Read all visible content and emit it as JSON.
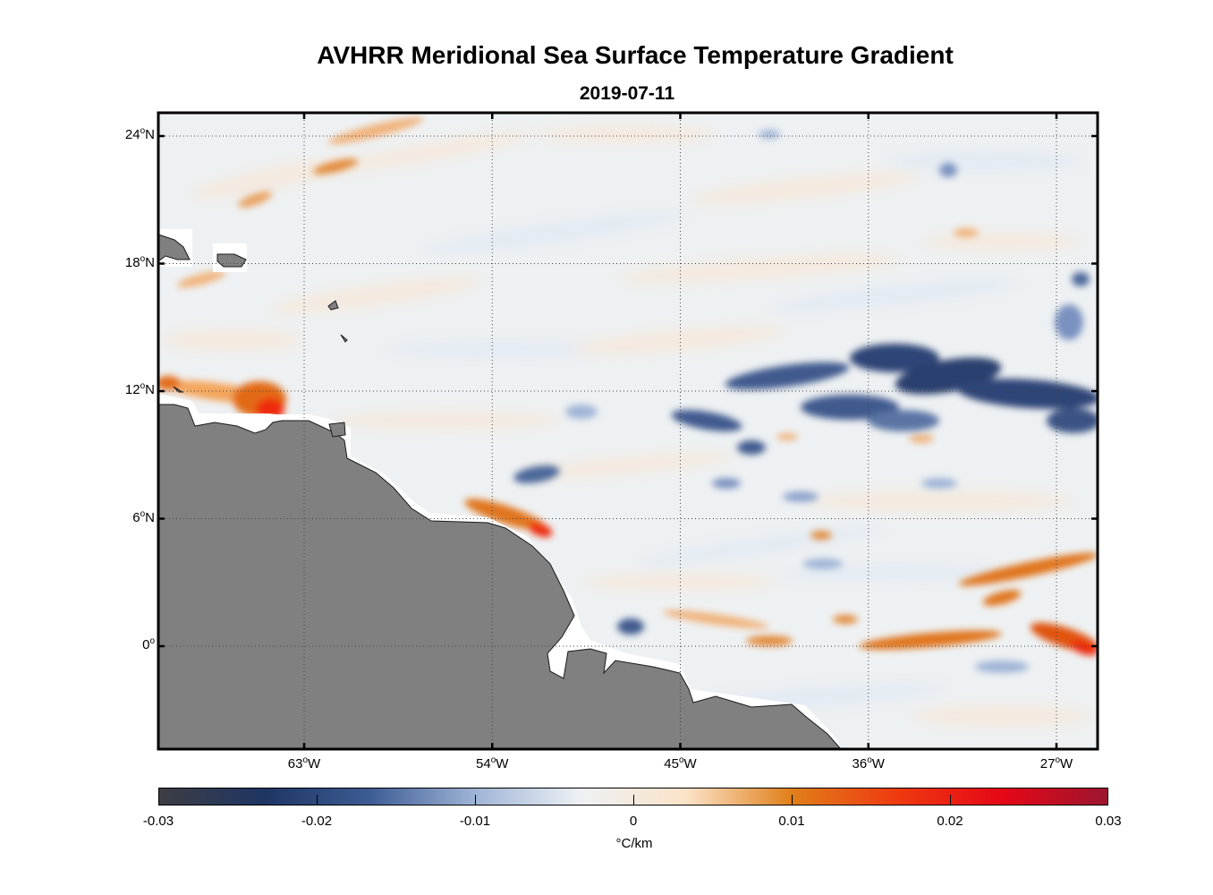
{
  "title": "AVHRR Meridional Sea Surface Temperature Gradient",
  "subtitle": "2019-07-11",
  "lat_labels": [
    {
      "deg": "24",
      "hem": "N",
      "value": 24
    },
    {
      "deg": "18",
      "hem": "N",
      "value": 18
    },
    {
      "deg": "12",
      "hem": "N",
      "value": 12
    },
    {
      "deg": "6",
      "hem": "N",
      "value": 6
    },
    {
      "deg": "0",
      "hem": "",
      "value": 0
    }
  ],
  "lon_labels": [
    {
      "deg": "63",
      "hem": "W",
      "value": -63
    },
    {
      "deg": "54",
      "hem": "W",
      "value": -54
    },
    {
      "deg": "45",
      "hem": "W",
      "value": -45
    },
    {
      "deg": "36",
      "hem": "W",
      "value": -36
    },
    {
      "deg": "27",
      "hem": "W",
      "value": -27
    }
  ],
  "colorbar": {
    "ticks": [
      "-0.03",
      "-0.02",
      "-0.01",
      "0",
      "0.01",
      "0.02",
      "0.03"
    ],
    "tick_values": [
      -0.03,
      -0.02,
      -0.01,
      0,
      0.01,
      0.02,
      0.03
    ],
    "units": "°C/km",
    "colors": [
      "#3d3d44",
      "#1e3563",
      "#3d5c94",
      "#9fb4d6",
      "#eef1f4",
      "#fbe3c8",
      "#e07f1a",
      "#ef3a10",
      "#e50716",
      "#9c1530"
    ]
  },
  "map_extent": {
    "lon_min": -70,
    "lon_max": -25,
    "lat_min": -5,
    "lat_max": 25
  },
  "land_color": "#808080"
}
